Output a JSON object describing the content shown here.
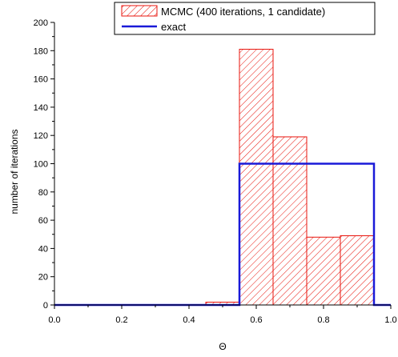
{
  "chart_data": {
    "type": "bar",
    "xlabel": "Θ",
    "ylabel": "number of iterations",
    "xlim": [
      0.0,
      1.0
    ],
    "ylim": [
      0,
      200
    ],
    "x_ticks": [
      "0.0",
      "0.2",
      "0.4",
      "0.6",
      "0.8",
      "1.0"
    ],
    "y_ticks": [
      "0",
      "20",
      "40",
      "60",
      "80",
      "100",
      "120",
      "140",
      "160",
      "180",
      "200"
    ],
    "grid": false,
    "legend_position": "top-right",
    "series": [
      {
        "name": "MCMC (400 iterations, 1 candidate)",
        "kind": "histogram",
        "color": "#e8140c",
        "fill": "hatched",
        "bins": [
          {
            "x0": 0.45,
            "x1": 0.55,
            "value": 2
          },
          {
            "x0": 0.55,
            "x1": 0.65,
            "value": 181
          },
          {
            "x0": 0.65,
            "x1": 0.75,
            "value": 119
          },
          {
            "x0": 0.75,
            "x1": 0.85,
            "value": 48
          },
          {
            "x0": 0.85,
            "x1": 0.95,
            "value": 49
          }
        ]
      },
      {
        "name": "exact",
        "kind": "step",
        "color": "#1a1ad8",
        "points": [
          [
            0.0,
            0
          ],
          [
            0.55,
            0
          ],
          [
            0.55,
            100
          ],
          [
            0.95,
            100
          ],
          [
            0.95,
            0
          ],
          [
            1.0,
            0
          ]
        ]
      }
    ]
  }
}
